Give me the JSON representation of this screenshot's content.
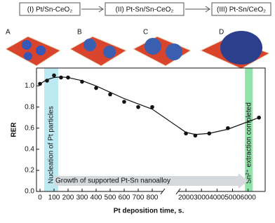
{
  "stages": [
    "(I) Pt/Sn-CeO₂",
    "(II) Pt-Sn/Sn-CeO₂",
    "(III) Pt-Sn/CeO₂"
  ],
  "panels": [
    "A",
    "B",
    "C",
    "D"
  ],
  "chart_data": {
    "type": "scatter",
    "y_label": "RER",
    "x_label": "Pt deposition time, s.",
    "x": [
      0,
      50,
      100,
      150,
      200,
      300,
      400,
      500,
      600,
      700,
      800,
      2000,
      2600,
      3500,
      4700,
      6700
    ],
    "values": [
      1.02,
      1.05,
      1.1,
      1.08,
      1.08,
      1.04,
      0.98,
      0.92,
      0.85,
      0.8,
      0.8,
      0.55,
      0.53,
      0.55,
      0.6,
      0.7
    ],
    "color": "#111111",
    "curve": {
      "x": [
        0,
        50,
        100,
        150,
        200,
        300,
        400,
        500,
        600,
        700,
        800,
        2000,
        2600,
        3500,
        4700,
        6700
      ],
      "values": [
        1.02,
        1.06,
        1.08,
        1.085,
        1.08,
        1.05,
        1.0,
        0.94,
        0.88,
        0.83,
        0.78,
        0.56,
        0.54,
        0.55,
        0.59,
        0.7
      ]
    },
    "xlim": [
      [
        -25,
        875
      ],
      [
        1500,
        7100
      ]
    ],
    "xticks": [
      [
        0,
        100,
        200,
        300,
        400,
        500,
        600,
        700,
        800
      ],
      [
        2000,
        3000,
        4000,
        5000,
        6000
      ]
    ],
    "ylim": [
      0,
      1.17
    ],
    "yticks": [
      {
        "value": 0,
        "label": "0.0"
      },
      0.2,
      0.4,
      0.6,
      0.8,
      {
        "value": 1,
        "label": "1.0"
      }
    ],
    "annotations": {
      "nucleation": {
        "text": "Nucleation of Pt particles",
        "x": [
          30,
          130
        ],
        "color": "#bde9f2"
      },
      "growth": {
        "text": "Growth of supported Pt-Sn nanoalloy",
        "x": [
          100,
          6000
        ],
        "y": 0.1
      },
      "extraction": {
        "text": "Sn²⁺ extraction completed",
        "x": [
          5800,
          6300
        ],
        "color": "#8fe3a8"
      }
    }
  }
}
